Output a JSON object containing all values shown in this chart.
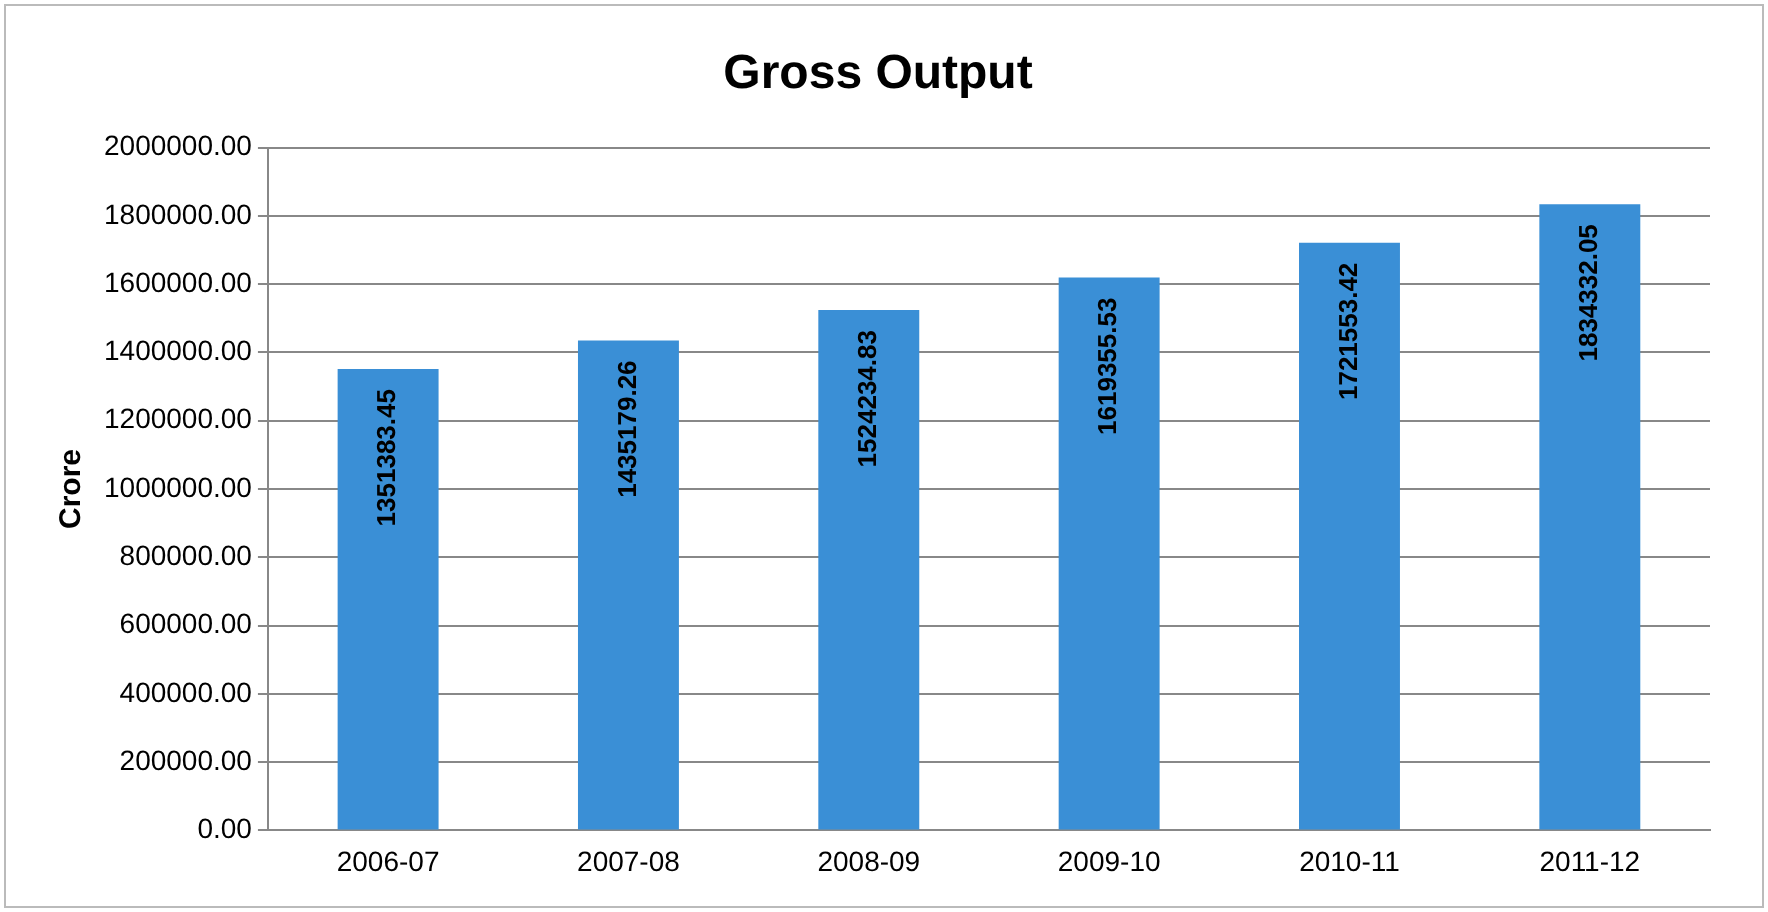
{
  "chart_data": {
    "type": "bar",
    "title": "Gross Output",
    "ylabel": "Crore",
    "categories": [
      "2006-07",
      "2007-08",
      "2008-09",
      "2009-10",
      "2010-11",
      "2011-12"
    ],
    "values": [
      1351383.45,
      1435179.26,
      1524234.83,
      1619355.53,
      1721553.42,
      1834332.05
    ],
    "color": "#3a8fd6",
    "ylim": [
      0,
      2000000
    ],
    "yticks": [
      {
        "value": 0,
        "label": "0.00"
      },
      {
        "value": 200000,
        "label": "200000.00"
      },
      {
        "value": 400000,
        "label": "400000.00"
      },
      {
        "value": 600000,
        "label": "600000.00"
      },
      {
        "value": 800000,
        "label": "800000.00"
      },
      {
        "value": 1000000,
        "label": "1000000.00"
      },
      {
        "value": 1200000,
        "label": "1200000.00"
      },
      {
        "value": 1400000,
        "label": "1400000.00"
      },
      {
        "value": 1600000,
        "label": "1600000.00"
      },
      {
        "value": 1800000,
        "label": "1800000.00"
      },
      {
        "value": 2000000,
        "label": "2000000.00"
      }
    ],
    "grid": "y",
    "legend": false,
    "data_labels": true
  }
}
